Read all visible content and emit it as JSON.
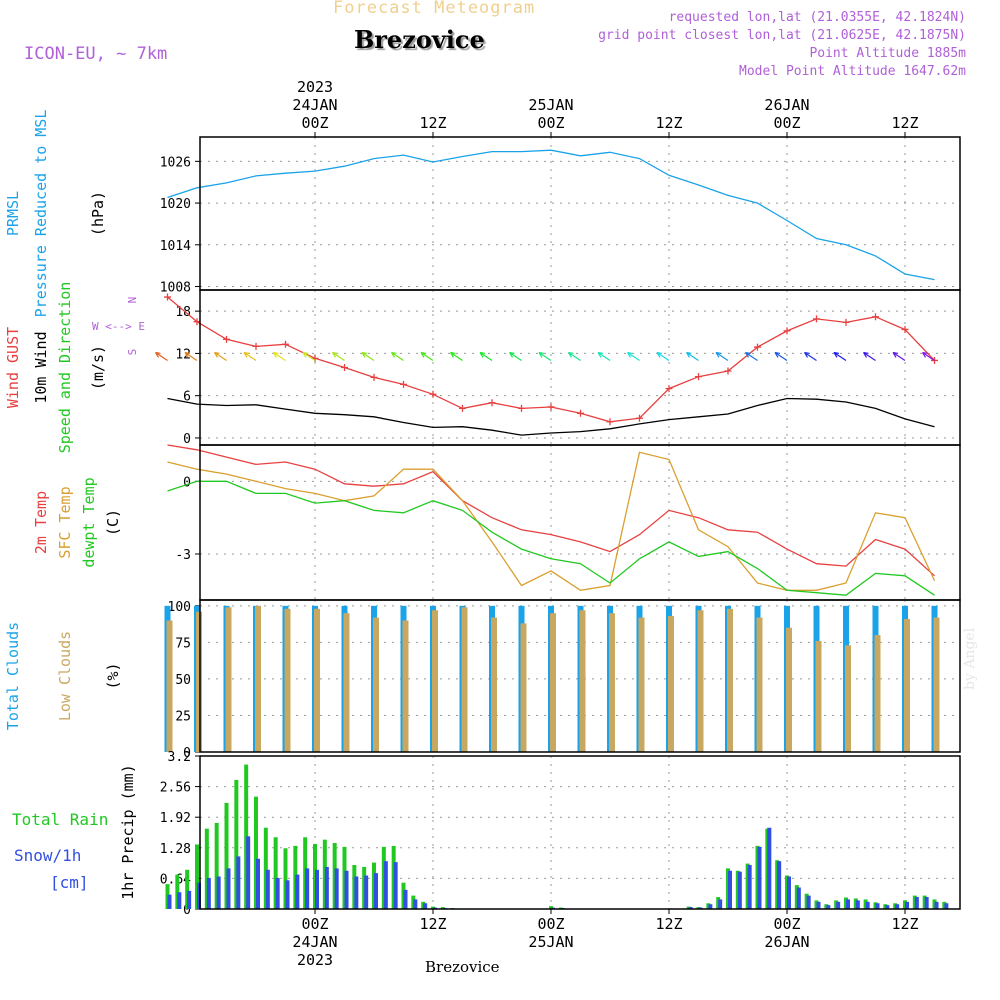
{
  "header": {
    "title": "Forecast Meteogram",
    "location": "Brezovice",
    "model": "ICON-EU, ~ 7km",
    "requested": "requested lon,lat (21.0355E, 42.1824N)",
    "gridpoint": "grid point closest lon,lat (21.0625E, 42.1875N)",
    "altitude": "Point Altitude 1885m",
    "model_altitude": "Model Point Altitude 1647.62m",
    "credit": "by Angel",
    "bottom_location": "Brezovice"
  },
  "colors": {
    "pressure": "#1aa3e8",
    "gust": "#e84040",
    "wind10m": "#000000",
    "temp2m": "#e84040",
    "sfc_temp": "#d9a030",
    "dewpt": "#22c822",
    "total_clouds": "#1aa3e8",
    "low_clouds": "#c8a860",
    "rain": "#22c822",
    "snow": "#3050e0",
    "label_violet": "#b060d8"
  },
  "chart_data": [
    {
      "type": "line",
      "panel": "pressure",
      "ylabels": [
        "PRMSL",
        "Pressure Reduced to MSL",
        "(hPa)"
      ],
      "ylim": [
        1007.5,
        1029.5
      ],
      "yticks": [
        1008,
        1014,
        1020,
        1026
      ],
      "series": [
        {
          "name": "PRMSL",
          "x_hours": [
            -15,
            -12,
            -9,
            -6,
            -3,
            0,
            3,
            6,
            9,
            12,
            15,
            18,
            21,
            24,
            27,
            30,
            33,
            36,
            39,
            42,
            45,
            48,
            51,
            54,
            57,
            60,
            63
          ],
          "values": [
            1020.8,
            1022.2,
            1022.9,
            1023.9,
            1024.3,
            1024.6,
            1025.3,
            1026.4,
            1026.9,
            1025.9,
            1026.7,
            1027.4,
            1027.4,
            1027.6,
            1026.8,
            1027.3,
            1026.4,
            1024.0,
            1022.6,
            1021.1,
            1020.0,
            1017.5,
            1014.9,
            1014.0,
            1012.4,
            1009.8,
            1009.0
          ]
        }
      ]
    },
    {
      "type": "line",
      "panel": "wind",
      "ylabels": [
        "Wind GUST",
        "10m Wind",
        "Speed and Direction",
        "(m/s)"
      ],
      "compass": [
        "N",
        "W <--> E",
        "S"
      ],
      "ylim": [
        -1,
        21
      ],
      "yticks": [
        0,
        6,
        12,
        18
      ],
      "series": [
        {
          "name": "Wind GUST",
          "x_hours": [
            -15,
            -12,
            -9,
            -6,
            -3,
            0,
            3,
            6,
            9,
            12,
            15,
            18,
            21,
            24,
            27,
            30,
            33,
            36,
            39,
            42,
            45,
            48,
            51,
            54,
            57,
            60,
            63
          ],
          "values": [
            20.0,
            16.5,
            14.0,
            13.0,
            13.3,
            11.3,
            10.0,
            8.6,
            7.6,
            6.2,
            4.2,
            5.0,
            4.2,
            4.4,
            3.5,
            2.3,
            2.8,
            7.0,
            8.7,
            9.5,
            12.9,
            15.2,
            16.9,
            16.4,
            17.2,
            15.4,
            11.0
          ]
        },
        {
          "name": "10m Wind",
          "x_hours": [
            -15,
            -12,
            -9,
            -6,
            -3,
            0,
            3,
            6,
            9,
            12,
            15,
            18,
            21,
            24,
            27,
            30,
            33,
            36,
            39,
            42,
            45,
            48,
            51,
            54,
            57,
            60,
            63
          ],
          "values": [
            5.6,
            4.8,
            4.6,
            4.7,
            4.1,
            3.5,
            3.3,
            3.0,
            2.2,
            1.5,
            1.6,
            1.1,
            0.4,
            0.7,
            0.9,
            1.3,
            2.0,
            2.6,
            3.0,
            3.4,
            4.6,
            5.6,
            5.5,
            5.1,
            4.2,
            2.7,
            1.6
          ]
        }
      ]
    },
    {
      "type": "line",
      "panel": "temperature",
      "ylabels": [
        "2m Temp",
        "SFC Temp",
        "dewpt Temp",
        "(C)"
      ],
      "ylim": [
        -4.9,
        1.5
      ],
      "yticks": [
        0,
        -3
      ],
      "series": [
        {
          "name": "2m Temp",
          "x_hours": [
            -15,
            -12,
            -9,
            -6,
            -3,
            0,
            3,
            6,
            9,
            12,
            15,
            18,
            21,
            24,
            27,
            30,
            33,
            36,
            39,
            42,
            45,
            48,
            51,
            54,
            57,
            60,
            63
          ],
          "values": [
            1.5,
            1.3,
            1.0,
            0.7,
            0.8,
            0.5,
            -0.1,
            -0.2,
            -0.1,
            0.4,
            -0.8,
            -1.5,
            -2.0,
            -2.2,
            -2.5,
            -2.9,
            -2.2,
            -1.2,
            -1.5,
            -2.0,
            -2.1,
            -2.8,
            -3.4,
            -3.5,
            -2.4,
            -2.8,
            -3.9
          ]
        },
        {
          "name": "SFC Temp",
          "x_hours": [
            -15,
            -12,
            -9,
            -6,
            -3,
            0,
            3,
            6,
            9,
            12,
            15,
            18,
            21,
            24,
            27,
            30,
            33,
            36,
            39,
            42,
            45,
            48,
            51,
            54,
            57,
            60,
            63
          ],
          "values": [
            0.8,
            0.5,
            0.3,
            0.0,
            -0.3,
            -0.5,
            -0.8,
            -0.6,
            0.5,
            0.5,
            -0.8,
            -2.5,
            -4.3,
            -3.7,
            -4.5,
            -4.3,
            1.2,
            0.9,
            -2.0,
            -2.7,
            -4.2,
            -4.5,
            -4.5,
            -4.2,
            -1.3,
            -1.5,
            -4.1
          ]
        },
        {
          "name": "dewpt Temp",
          "x_hours": [
            -15,
            -12,
            -9,
            -6,
            -3,
            0,
            3,
            6,
            9,
            12,
            15,
            18,
            21,
            24,
            27,
            30,
            33,
            36,
            39,
            42,
            45,
            48,
            51,
            54,
            57,
            60,
            63
          ],
          "values": [
            -0.4,
            0.0,
            0.0,
            -0.5,
            -0.5,
            -0.9,
            -0.8,
            -1.2,
            -1.3,
            -0.8,
            -1.2,
            -2.1,
            -2.8,
            -3.2,
            -3.4,
            -4.2,
            -3.2,
            -2.5,
            -3.1,
            -2.9,
            -3.6,
            -4.5,
            -4.6,
            -4.7,
            -3.8,
            -3.9,
            -4.7
          ]
        }
      ]
    },
    {
      "type": "bar",
      "panel": "clouds",
      "ylabels": [
        "Total Clouds",
        "Low Clouds",
        "(%)"
      ],
      "ylim": [
        0,
        104
      ],
      "yticks": [
        0,
        25,
        50,
        75,
        100
      ],
      "series": [
        {
          "name": "Total Clouds",
          "x_hours": [
            -15,
            -12,
            -9,
            -6,
            -3,
            0,
            3,
            6,
            9,
            12,
            15,
            18,
            21,
            24,
            27,
            30,
            33,
            36,
            39,
            42,
            45,
            48,
            51,
            54,
            57,
            60,
            63
          ],
          "values": [
            100,
            100,
            100,
            100,
            100,
            100,
            100,
            100,
            100,
            100,
            100,
            100,
            100,
            100,
            100,
            100,
            100,
            100,
            100,
            100,
            100,
            100,
            100,
            100,
            100,
            100,
            100
          ]
        },
        {
          "name": "Low Clouds",
          "x_hours": [
            -15,
            -12,
            -9,
            -6,
            -3,
            0,
            3,
            6,
            9,
            12,
            15,
            18,
            21,
            24,
            27,
            30,
            33,
            36,
            39,
            42,
            45,
            48,
            51,
            54,
            57,
            60,
            63
          ],
          "values": [
            90,
            96,
            99,
            100,
            98,
            98,
            95,
            92,
            90,
            97,
            99,
            92,
            88,
            95,
            97,
            95,
            92,
            93,
            97,
            98,
            92,
            85,
            76,
            73,
            80,
            91,
            92
          ]
        }
      ]
    },
    {
      "type": "bar",
      "panel": "precip",
      "ylabels": [
        "Total  Rain",
        "Snow/1h",
        "[cm]",
        "1hr Precip (mm)"
      ],
      "ylim": [
        0,
        3.2
      ],
      "yticks": [
        0,
        0.64,
        1.28,
        1.92,
        2.56,
        3.2
      ],
      "series": [
        {
          "name": "Total  Rain",
          "x_hours": [
            -15,
            -14,
            -13,
            -12,
            -11,
            -10,
            -9,
            -8,
            -7,
            -6,
            -5,
            -4,
            -3,
            -2,
            -1,
            0,
            1,
            2,
            3,
            4,
            5,
            6,
            7,
            8,
            9,
            10,
            11,
            12,
            13,
            14,
            15,
            24,
            25,
            38,
            39,
            40,
            41,
            42,
            43,
            44,
            45,
            46,
            47,
            48,
            49,
            50,
            51,
            52,
            53,
            54,
            55,
            56,
            57,
            58,
            59,
            60,
            61,
            62,
            63,
            64
          ],
          "values": [
            0.52,
            0.72,
            0.82,
            1.35,
            1.68,
            1.8,
            2.22,
            2.7,
            3.02,
            2.35,
            1.7,
            1.5,
            1.27,
            1.32,
            1.5,
            1.36,
            1.45,
            1.38,
            1.3,
            0.92,
            0.88,
            0.97,
            1.3,
            1.32,
            0.55,
            0.28,
            0.15,
            0.05,
            0.04,
            0.02,
            0.01,
            0.06,
            0.03,
            0.05,
            0.04,
            0.12,
            0.25,
            0.85,
            0.8,
            0.95,
            1.32,
            1.68,
            1.02,
            0.7,
            0.5,
            0.32,
            0.18,
            0.1,
            0.18,
            0.24,
            0.22,
            0.2,
            0.14,
            0.1,
            0.12,
            0.18,
            0.28,
            0.28,
            0.2,
            0.15
          ]
        },
        {
          "name": "Snow/1h",
          "x_hours": [
            -15,
            -14,
            -13,
            -12,
            -11,
            -10,
            -9,
            -8,
            -7,
            -6,
            -5,
            -4,
            -3,
            -2,
            -1,
            0,
            1,
            2,
            3,
            4,
            5,
            6,
            7,
            8,
            9,
            10,
            11,
            12,
            13,
            14,
            15,
            24,
            25,
            38,
            39,
            40,
            41,
            42,
            43,
            44,
            45,
            46,
            47,
            48,
            49,
            50,
            51,
            52,
            53,
            54,
            55,
            56,
            57,
            58,
            59,
            60,
            61,
            62,
            63,
            64
          ],
          "values": [
            0.3,
            0.35,
            0.38,
            0.55,
            0.65,
            0.68,
            0.85,
            1.1,
            1.52,
            1.05,
            0.82,
            0.65,
            0.6,
            0.72,
            0.85,
            0.82,
            0.88,
            0.85,
            0.8,
            0.68,
            0.7,
            0.75,
            1.0,
            0.98,
            0.4,
            0.2,
            0.12,
            0.03,
            0.02,
            0.01,
            0.01,
            0.03,
            0.02,
            0.04,
            0.03,
            0.1,
            0.2,
            0.8,
            0.78,
            0.92,
            1.3,
            1.7,
            1.0,
            0.68,
            0.45,
            0.28,
            0.15,
            0.08,
            0.15,
            0.2,
            0.18,
            0.15,
            0.12,
            0.08,
            0.1,
            0.15,
            0.25,
            0.25,
            0.15,
            0.12
          ]
        }
      ]
    }
  ],
  "axis": {
    "top_labels": [
      {
        "hour": 0,
        "lines": [
          "2023",
          "24JAN",
          "00Z"
        ]
      },
      {
        "hour": 12,
        "lines": [
          "12Z"
        ]
      },
      {
        "hour": 24,
        "lines": [
          "25JAN",
          "00Z"
        ]
      },
      {
        "hour": 36,
        "lines": [
          "12Z"
        ]
      },
      {
        "hour": 48,
        "lines": [
          "26JAN",
          "00Z"
        ]
      },
      {
        "hour": 60,
        "lines": [
          "12Z"
        ]
      }
    ],
    "bottom_labels": [
      {
        "hour": 0,
        "lines": [
          "00Z",
          "24JAN",
          "2023"
        ]
      },
      {
        "hour": 12,
        "lines": [
          "12Z"
        ]
      },
      {
        "hour": 24,
        "lines": [
          "00Z",
          "25JAN"
        ]
      },
      {
        "hour": 36,
        "lines": [
          "12Z"
        ]
      },
      {
        "hour": 48,
        "lines": [
          "00Z",
          "26JAN"
        ]
      },
      {
        "hour": 60,
        "lines": [
          "12Z"
        ]
      }
    ]
  }
}
